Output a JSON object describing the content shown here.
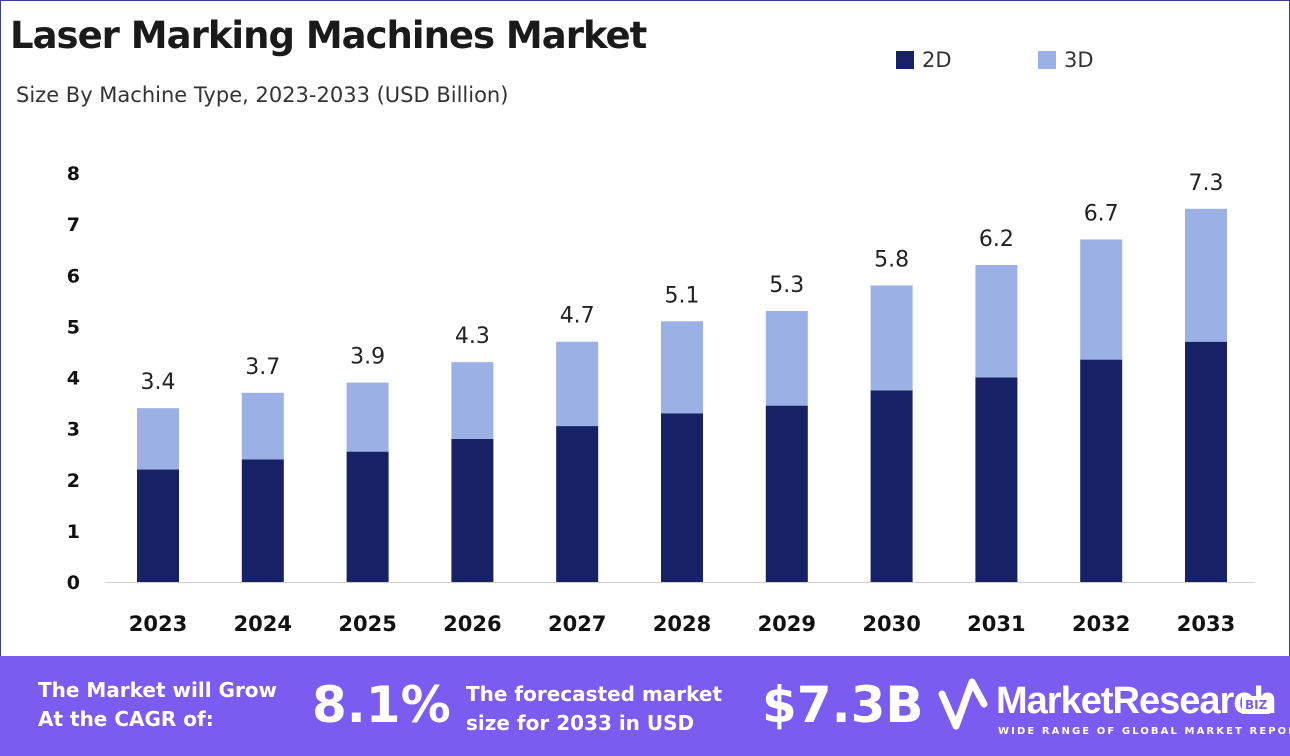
{
  "title": "Laser Marking Machines Market",
  "subtitle": "Size By Machine Type, 2023-2033 (USD Billion)",
  "colors": {
    "2D": "#172166",
    "3D": "#9bb0e4",
    "banner": "#7b5cf0"
  },
  "chart_data": {
    "type": "bar",
    "stacked": true,
    "categories": [
      "2023",
      "2024",
      "2025",
      "2026",
      "2027",
      "2028",
      "2029",
      "2030",
      "2031",
      "2032",
      "2033"
    ],
    "series": [
      {
        "name": "2D",
        "values": [
          2.2,
          2.4,
          2.55,
          2.8,
          3.05,
          3.3,
          3.45,
          3.75,
          4.0,
          4.35,
          4.7
        ]
      },
      {
        "name": "3D",
        "values": [
          1.2,
          1.3,
          1.35,
          1.5,
          1.65,
          1.8,
          1.85,
          2.05,
          2.2,
          2.35,
          2.6
        ]
      }
    ],
    "totals": [
      "3.4",
      "3.7",
      "3.9",
      "4.3",
      "4.7",
      "5.1",
      "5.3",
      "5.8",
      "6.2",
      "6.7",
      "7.3"
    ],
    "yticks": [
      "0",
      "1",
      "2",
      "3",
      "4",
      "5",
      "6",
      "7",
      "8"
    ],
    "ylim": [
      0,
      8
    ],
    "legend_position": "top-right",
    "grid": false
  },
  "banner": {
    "cagr_label_line1": "The Market will Grow",
    "cagr_label_line2": "At the CAGR of:",
    "cagr_value": "8.1%",
    "forecast_label_line1": "The forecasted market",
    "forecast_label_line2": "size for 2033 in USD",
    "forecast_value": "$7.3B"
  },
  "logo": {
    "name": "MarketResearch",
    "badge": "BIZ",
    "tagline": "WIDE RANGE OF GLOBAL MARKET REPORTS"
  }
}
